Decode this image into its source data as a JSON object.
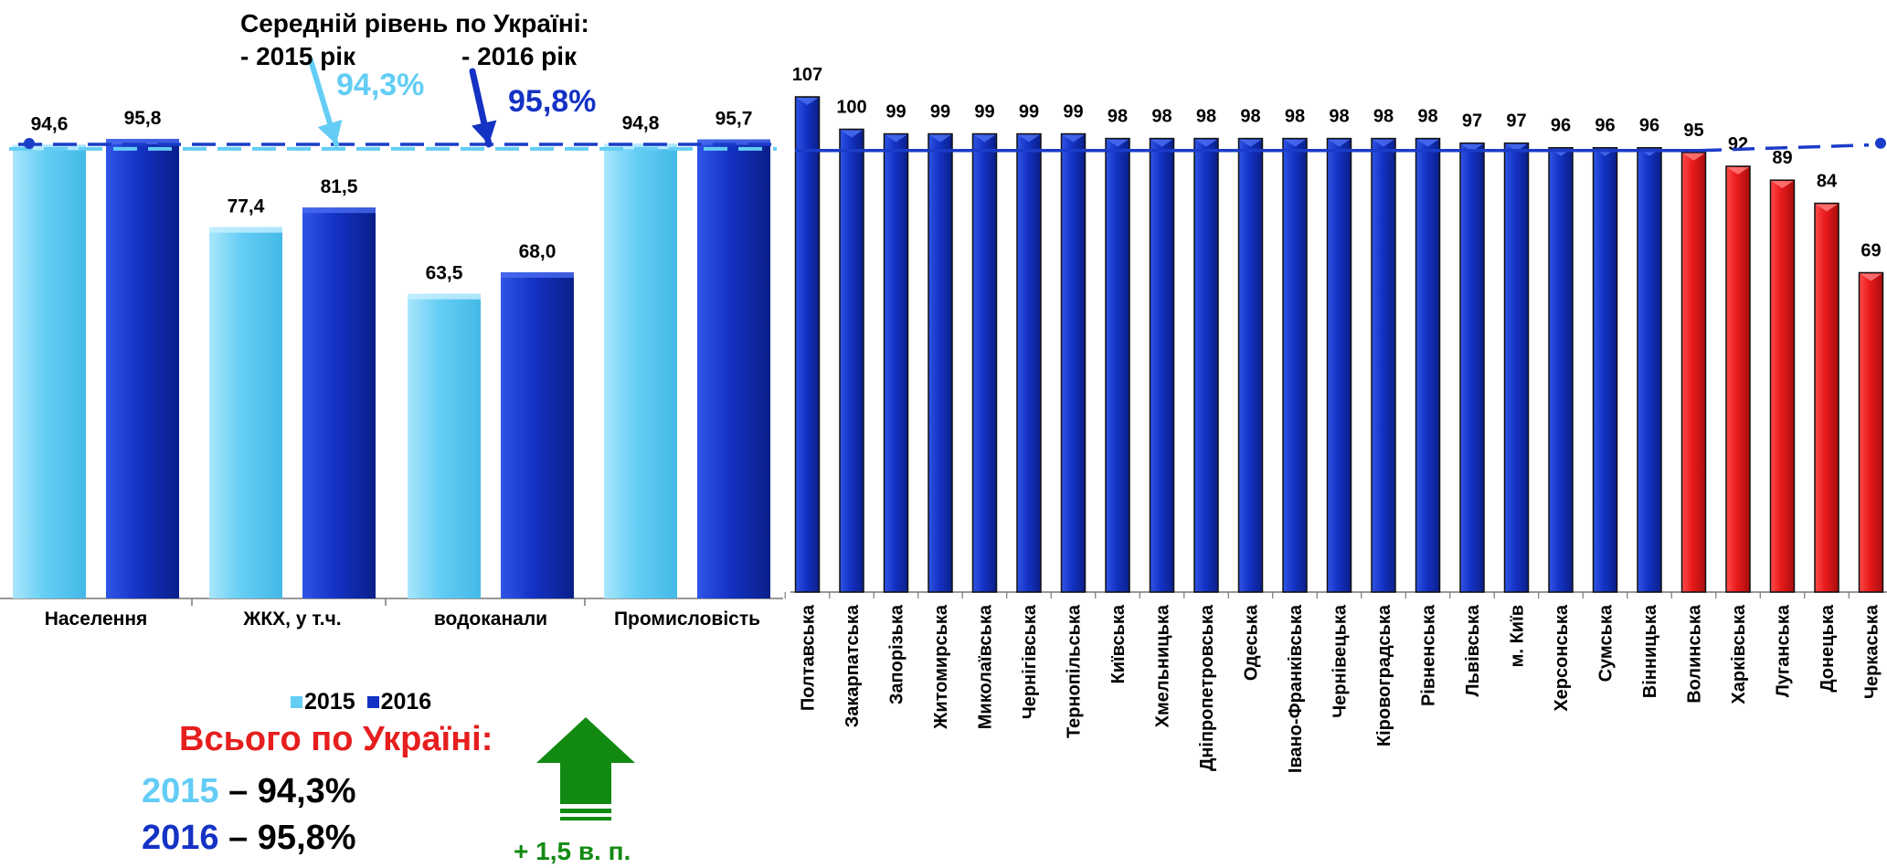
{
  "annotation": {
    "title": "Середній рівень по Україні:",
    "year1_label": "- 2015 рік",
    "year2_label": "- 2016 рік",
    "year1_value": "94,3%",
    "year2_value": "95,8%"
  },
  "legend": {
    "items": [
      "2015",
      "2016"
    ]
  },
  "totals": {
    "title": "Всього по Україні:",
    "rows": [
      {
        "year": "2015",
        "text": " – 94,3%"
      },
      {
        "year": "2016",
        "text": " – 95,8%"
      }
    ],
    "change": "+ 1,5 в. п."
  },
  "colors": {
    "y2015": "#63cdf5",
    "y2016": "#1432c4",
    "region_blue": "#1432c4",
    "region_red": "#e81a1a",
    "arrow_green": "#128a12",
    "avg_line": "#1a3cc8"
  },
  "chart_data": [
    {
      "type": "bar",
      "categories": [
        "Населення",
        "ЖКХ,  у т.ч.",
        "водоканали",
        "Промисловість"
      ],
      "series": [
        {
          "name": "2015",
          "values": [
            94.6,
            77.4,
            63.5,
            94.8
          ],
          "labels": [
            "94,6",
            "77,4",
            "63,5",
            "94,8"
          ]
        },
        {
          "name": "2016",
          "values": [
            95.8,
            81.5,
            68.0,
            95.7
          ],
          "labels": [
            "95,8",
            "81,5",
            "68,0",
            "95,7"
          ]
        }
      ],
      "reference_lines": [
        94.3,
        95.8
      ],
      "ylim": [
        0,
        100
      ]
    },
    {
      "type": "bar",
      "categories": [
        "Полтавська",
        "Закарпатська",
        "Запорізька",
        "Житомирська",
        "Миколаївська",
        "Чернігівська",
        "Тернопільська",
        "Київська",
        "Хмельницька",
        "Дніпропетровська",
        "Одеська",
        "Івано-Франківська",
        "Чернівецька",
        "Кіровоградська",
        "Рівненська",
        "Львівська",
        "м. Київ",
        "Херсонська",
        "Сумська",
        "Вінницька",
        "Волинська",
        "Харківська",
        "Луганська",
        "Донецька",
        "Черкаська"
      ],
      "values": [
        107,
        100,
        99,
        99,
        99,
        99,
        99,
        98,
        98,
        98,
        98,
        98,
        98,
        98,
        98,
        97,
        97,
        96,
        96,
        96,
        95,
        92,
        89,
        84,
        69
      ],
      "colors": [
        "blue",
        "blue",
        "blue",
        "blue",
        "blue",
        "blue",
        "blue",
        "blue",
        "blue",
        "blue",
        "blue",
        "blue",
        "blue",
        "blue",
        "blue",
        "blue",
        "blue",
        "blue",
        "blue",
        "blue",
        "red",
        "red",
        "red",
        "red",
        "red"
      ],
      "reference_line": 95.8,
      "ylim": [
        0,
        107
      ]
    }
  ]
}
